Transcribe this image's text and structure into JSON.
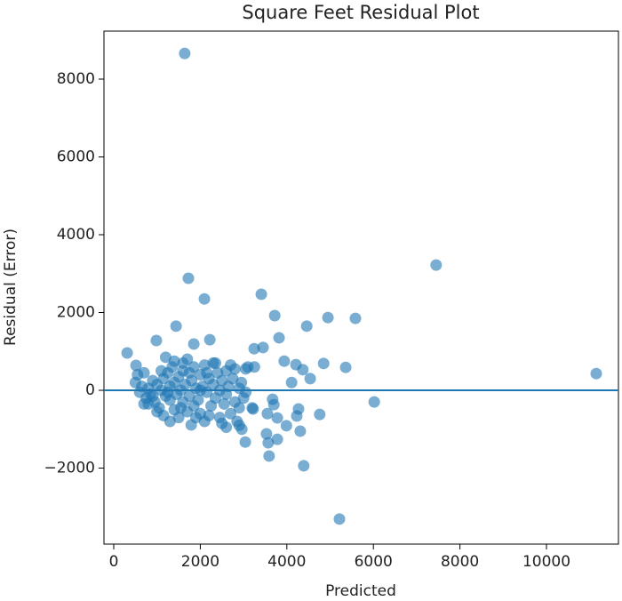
{
  "chart_data": {
    "type": "scatter",
    "title": "Square Feet Residual Plot",
    "xlabel": "Predicted",
    "ylabel": "Residual (Error)",
    "color": "#1f77b4",
    "hline": 0,
    "xlim": [
      -226,
      11663
    ],
    "ylim": [
      -3954,
      9234
    ],
    "xticks": [
      0,
      2000,
      4000,
      6000,
      8000,
      10000
    ],
    "yticks": [
      {
        "value": -2000,
        "label": "−2000"
      },
      0,
      2000,
      4000,
      6000,
      8000
    ],
    "x": [
      1640,
      7450,
      11150,
      5215,
      1725,
      2095,
      3410,
      3720,
      4950,
      5585,
      1440,
      4460,
      3820,
      2220,
      985,
      1850,
      310,
      3245,
      3450,
      3940,
      4210,
      4850,
      5360,
      4370,
      4540,
      4110,
      515,
      6020,
      4760,
      4270,
      4230,
      3780,
      3990,
      3700,
      3670,
      3550,
      4310,
      3570,
      3780,
      3530,
      3590,
      4390,
      3040,
      2960,
      3220,
      1790,
      500,
      550,
      600,
      650,
      700,
      750,
      800,
      850,
      900,
      950,
      1000,
      1050,
      1100,
      1150,
      1150,
      1200,
      1250,
      1300,
      1300,
      1350,
      1400,
      1400,
      1450,
      1500,
      1500,
      1550,
      1600,
      1600,
      1650,
      1700,
      1700,
      1750,
      1800,
      1850,
      1850,
      1900,
      1950,
      2000,
      2000,
      2050,
      2100,
      2100,
      2150,
      2200,
      2250,
      2300,
      2300,
      2350,
      2400,
      2450,
      2450,
      2500,
      2550,
      2600,
      2600,
      2650,
      2700,
      2750,
      2800,
      2800,
      2850,
      2900,
      2900,
      2950,
      3000,
      3050,
      3100,
      3200,
      3250,
      3050,
      2700,
      2500,
      2200,
      1900,
      1400,
      1200,
      1000,
      800,
      900,
      1100,
      1300,
      1600,
      2000,
      2150,
      2350,
      2600,
      2900,
      1750,
      1550,
      1250,
      700
    ],
    "values": [
      8660,
      3220,
      430,
      -3310,
      2880,
      2350,
      2470,
      1920,
      1870,
      1850,
      1650,
      1650,
      1350,
      1300,
      1280,
      1190,
      960,
      1070,
      1100,
      750,
      660,
      690,
      590,
      530,
      300,
      200,
      640,
      -300,
      -620,
      -480,
      -660,
      -710,
      -910,
      -370,
      -230,
      -600,
      -1050,
      -1350,
      -1260,
      -1120,
      -1690,
      -1940,
      -1330,
      -1000,
      -480,
      -890,
      200,
      400,
      -50,
      100,
      -350,
      -200,
      50,
      -100,
      250,
      -300,
      150,
      -450,
      0,
      300,
      -650,
      -150,
      450,
      -250,
      100,
      600,
      -500,
      200,
      -100,
      350,
      -700,
      0,
      -300,
      500,
      150,
      -550,
      800,
      -150,
      250,
      -400,
      600,
      50,
      -250,
      400,
      -600,
      100,
      -800,
      650,
      -50,
      300,
      -400,
      150,
      700,
      -200,
      450,
      -700,
      0,
      250,
      -350,
      500,
      -100,
      100,
      -600,
      300,
      -300,
      550,
      -800,
      50,
      -450,
      200,
      -200,
      550,
      600,
      -450,
      600,
      -50,
      650,
      -850,
      -650,
      -700,
      750,
      850,
      -550,
      -350,
      -150,
      500,
      -800,
      700,
      0,
      450,
      700,
      -950,
      -900,
      450,
      -450,
      -50,
      450
    ]
  }
}
